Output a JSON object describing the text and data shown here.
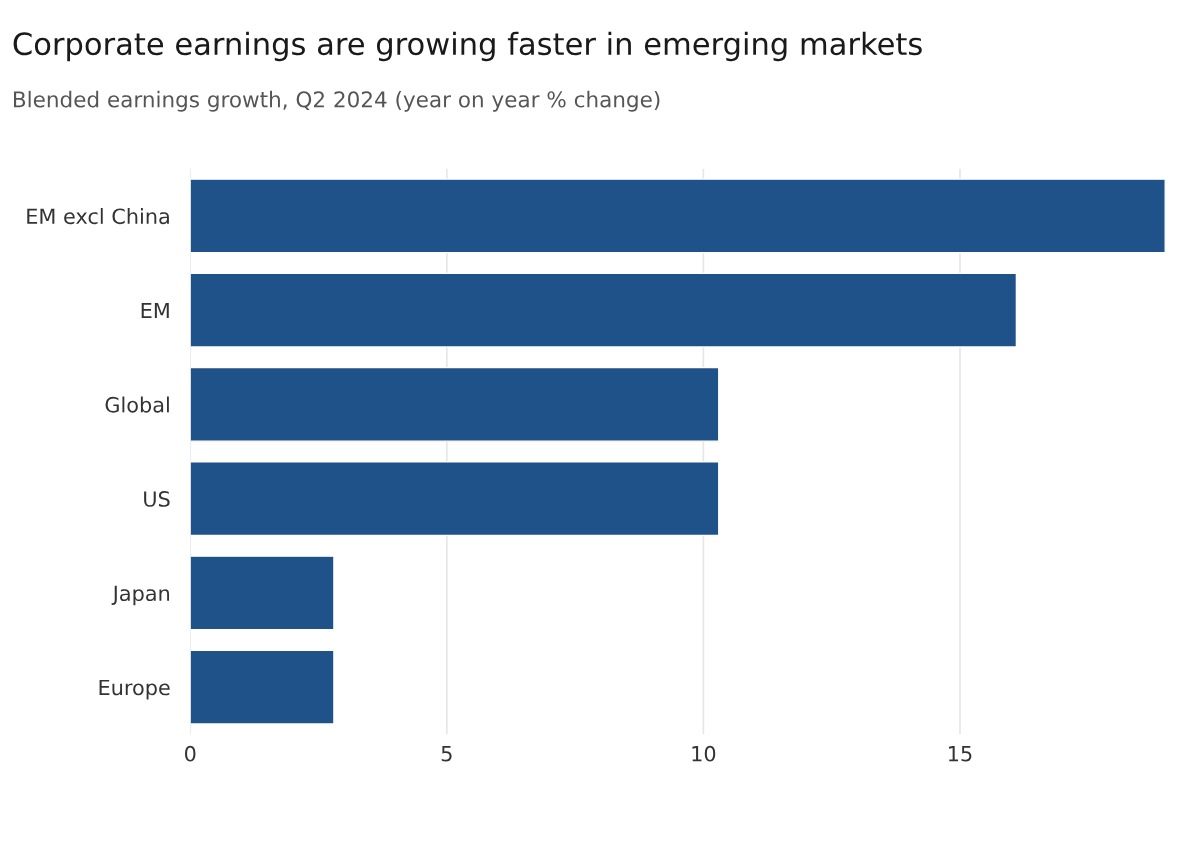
{
  "chart_data": {
    "type": "bar",
    "orientation": "horizontal",
    "title": "Corporate earnings are growing faster in emerging markets",
    "subtitle": "Blended earnings growth, Q2 2024 (year on year % change)",
    "categories": [
      "EM excl China",
      "EM",
      "Global",
      "US",
      "Japan",
      "Europe"
    ],
    "values": [
      19.0,
      16.1,
      10.3,
      10.3,
      2.8,
      2.8
    ],
    "color": "#1f5289",
    "xlim": [
      0,
      19
    ],
    "xticks": [
      0,
      5,
      10,
      15
    ],
    "grid": "x"
  }
}
